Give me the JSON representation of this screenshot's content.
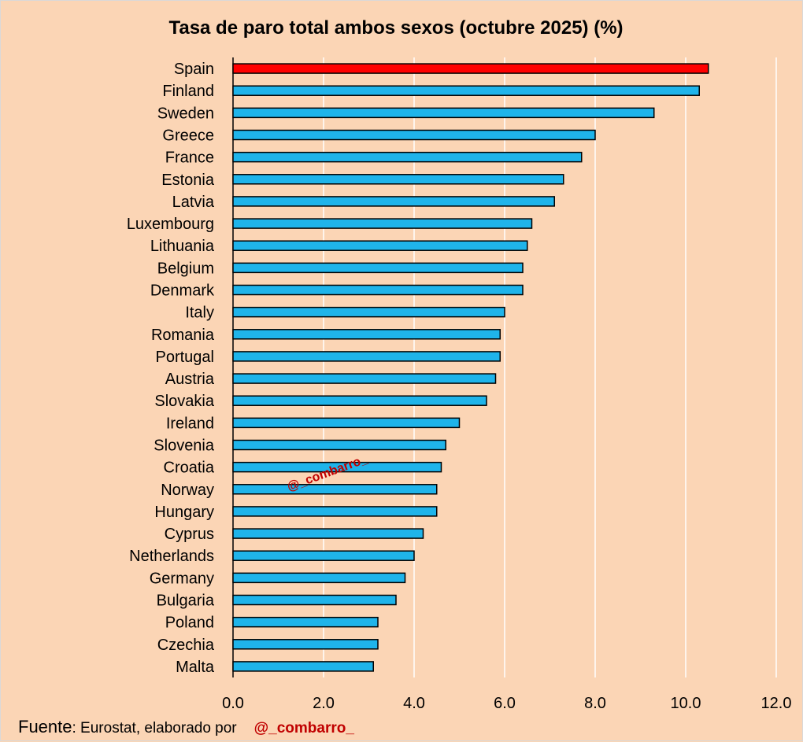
{
  "chart_data": {
    "type": "bar",
    "orientation": "horizontal",
    "title": "Tasa de paro total ambos sexos (octubre 2025) (%)",
    "categories": [
      "Spain",
      "Finland",
      "Sweden",
      "Greece",
      "France",
      "Estonia",
      "Latvia",
      "Luxembourg",
      "Lithuania",
      "Belgium",
      "Denmark",
      "Italy",
      "Romania",
      "Portugal",
      "Austria",
      "Slovakia",
      "Ireland",
      "Slovenia",
      "Croatia",
      "Norway",
      "Hungary",
      "Cyprus",
      "Netherlands",
      "Germany",
      "Bulgaria",
      "Poland",
      "Czechia",
      "Malta"
    ],
    "values": [
      10.5,
      10.3,
      9.3,
      8.0,
      7.7,
      7.3,
      7.1,
      6.6,
      6.5,
      6.4,
      6.4,
      6.0,
      5.9,
      5.9,
      5.8,
      5.6,
      5.0,
      4.7,
      4.6,
      4.5,
      4.5,
      4.2,
      4.0,
      3.8,
      3.6,
      3.2,
      3.2,
      3.1
    ],
    "highlight_category": "Spain",
    "highlight_color": "#ff0000",
    "bar_color": "#1fb4ea",
    "xlim": [
      0,
      12
    ],
    "x_ticks": [
      "0.0",
      "2.0",
      "4.0",
      "6.0",
      "8.0",
      "10.0",
      "12.0"
    ],
    "grid": true,
    "xlabel": "",
    "ylabel": ""
  },
  "watermark": "@_combarro_",
  "source": {
    "lead": "Fuente",
    "text": ": Eurostat, elaborado por",
    "handle": "@_combarro_"
  }
}
